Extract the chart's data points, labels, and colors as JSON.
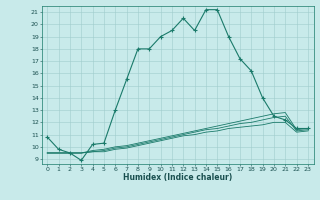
{
  "title": "",
  "xlabel": "Humidex (Indice chaleur)",
  "bg_color": "#c8eaea",
  "line_color": "#1a7a6a",
  "grid_color": "#a0cccc",
  "xlim": [
    -0.5,
    23.5
  ],
  "ylim": [
    8.6,
    21.5
  ],
  "xticks": [
    0,
    1,
    2,
    3,
    4,
    5,
    6,
    7,
    8,
    9,
    10,
    11,
    12,
    13,
    14,
    15,
    16,
    17,
    18,
    19,
    20,
    21,
    22,
    23
  ],
  "yticks": [
    9,
    10,
    11,
    12,
    13,
    14,
    15,
    16,
    17,
    18,
    19,
    20,
    21
  ],
  "series": [
    {
      "x": [
        0,
        1,
        2,
        3,
        4,
        5,
        6,
        7,
        8,
        9,
        10,
        11,
        12,
        13,
        14,
        15,
        16,
        17,
        18,
        19,
        20,
        21,
        22,
        23
      ],
      "y": [
        10.8,
        9.8,
        9.5,
        8.9,
        10.2,
        10.3,
        13.0,
        15.5,
        18.0,
        18.0,
        19.0,
        19.5,
        20.5,
        19.5,
        21.2,
        21.2,
        19.0,
        17.2,
        16.2,
        14.0,
        12.5,
        12.2,
        11.5,
        11.5
      ],
      "marker": "+"
    },
    {
      "x": [
        0,
        1,
        2,
        3,
        4,
        5,
        6,
        7,
        8,
        9,
        10,
        11,
        12,
        13,
        14,
        15,
        16,
        17,
        18,
        19,
        20,
        21,
        22,
        23
      ],
      "y": [
        9.5,
        9.5,
        9.5,
        9.5,
        9.7,
        9.8,
        10.0,
        10.1,
        10.3,
        10.5,
        10.7,
        10.9,
        11.1,
        11.3,
        11.5,
        11.7,
        11.9,
        12.1,
        12.3,
        12.5,
        12.7,
        12.8,
        11.4,
        11.5
      ],
      "marker": null
    },
    {
      "x": [
        0,
        1,
        2,
        3,
        4,
        5,
        6,
        7,
        8,
        9,
        10,
        11,
        12,
        13,
        14,
        15,
        16,
        17,
        18,
        19,
        20,
        21,
        22,
        23
      ],
      "y": [
        9.5,
        9.5,
        9.5,
        9.5,
        9.6,
        9.7,
        9.9,
        10.0,
        10.2,
        10.4,
        10.6,
        10.8,
        11.0,
        11.2,
        11.4,
        11.5,
        11.7,
        11.9,
        12.0,
        12.2,
        12.4,
        12.5,
        11.3,
        11.4
      ],
      "marker": null
    },
    {
      "x": [
        0,
        1,
        2,
        3,
        4,
        5,
        6,
        7,
        8,
        9,
        10,
        11,
        12,
        13,
        14,
        15,
        16,
        17,
        18,
        19,
        20,
        21,
        22,
        23
      ],
      "y": [
        9.5,
        9.5,
        9.5,
        9.5,
        9.6,
        9.6,
        9.8,
        9.9,
        10.1,
        10.3,
        10.5,
        10.7,
        10.9,
        11.0,
        11.2,
        11.3,
        11.5,
        11.6,
        11.7,
        11.8,
        12.0,
        12.0,
        11.2,
        11.3
      ],
      "marker": null
    }
  ]
}
